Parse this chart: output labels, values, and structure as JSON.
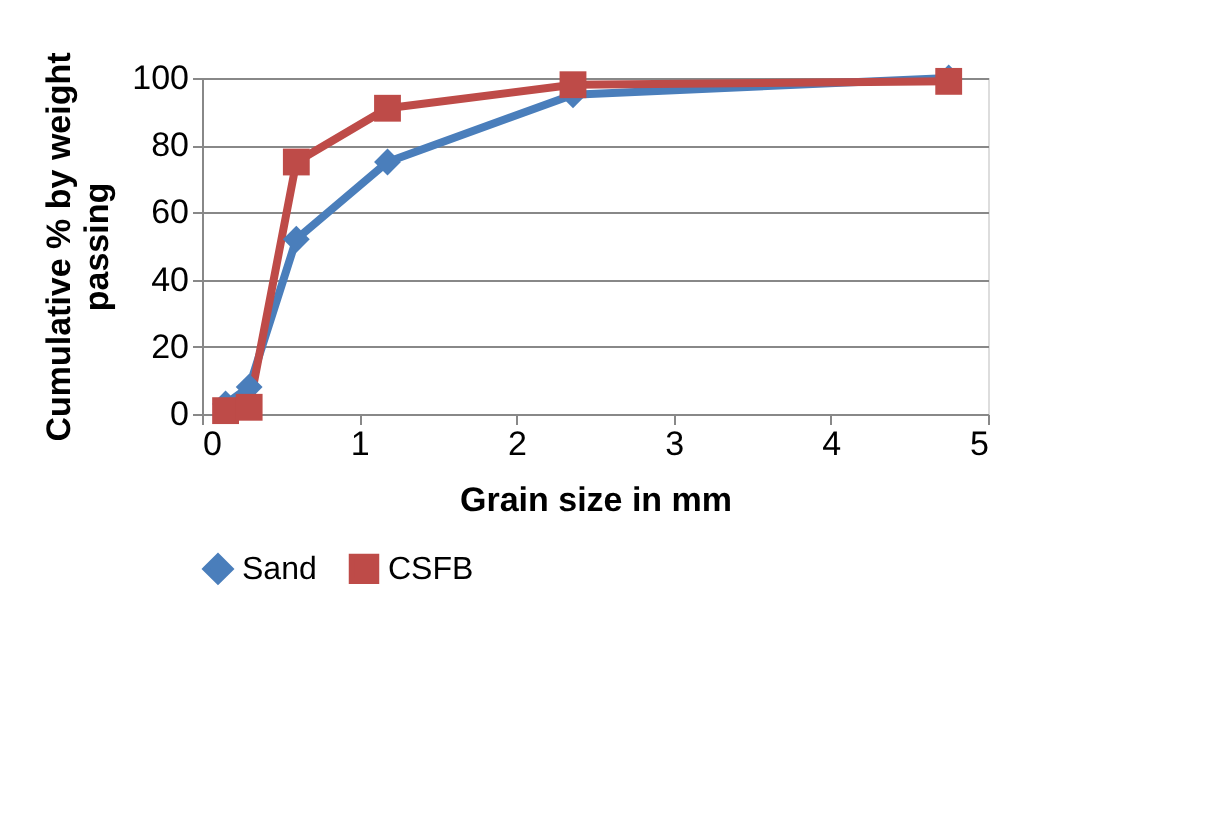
{
  "chart_data": {
    "type": "line",
    "xlabel": "Grain size in mm",
    "ylabel": "Cumulative % by weight passing",
    "xlim": [
      0,
      5
    ],
    "xticks": [
      0,
      1,
      2,
      3,
      4,
      5
    ],
    "ylim": [
      0,
      100
    ],
    "yticks": [
      0,
      20,
      40,
      60,
      80,
      100
    ],
    "grid": "y",
    "legend": "bottom",
    "line_style": "solid",
    "series": [
      {
        "name": "Sand",
        "color": "#4a7ebb",
        "marker": "diamond",
        "x": [
          0.15,
          0.3,
          0.6,
          1.18,
          2.36,
          4.75
        ],
        "values": [
          3,
          8,
          52,
          75,
          95,
          100
        ]
      },
      {
        "name": "CSFB",
        "color": "#be4b48",
        "marker": "square",
        "x": [
          0.15,
          0.3,
          0.6,
          1.18,
          2.36,
          4.75
        ],
        "values": [
          1,
          2,
          75,
          91,
          98,
          99
        ]
      }
    ]
  }
}
